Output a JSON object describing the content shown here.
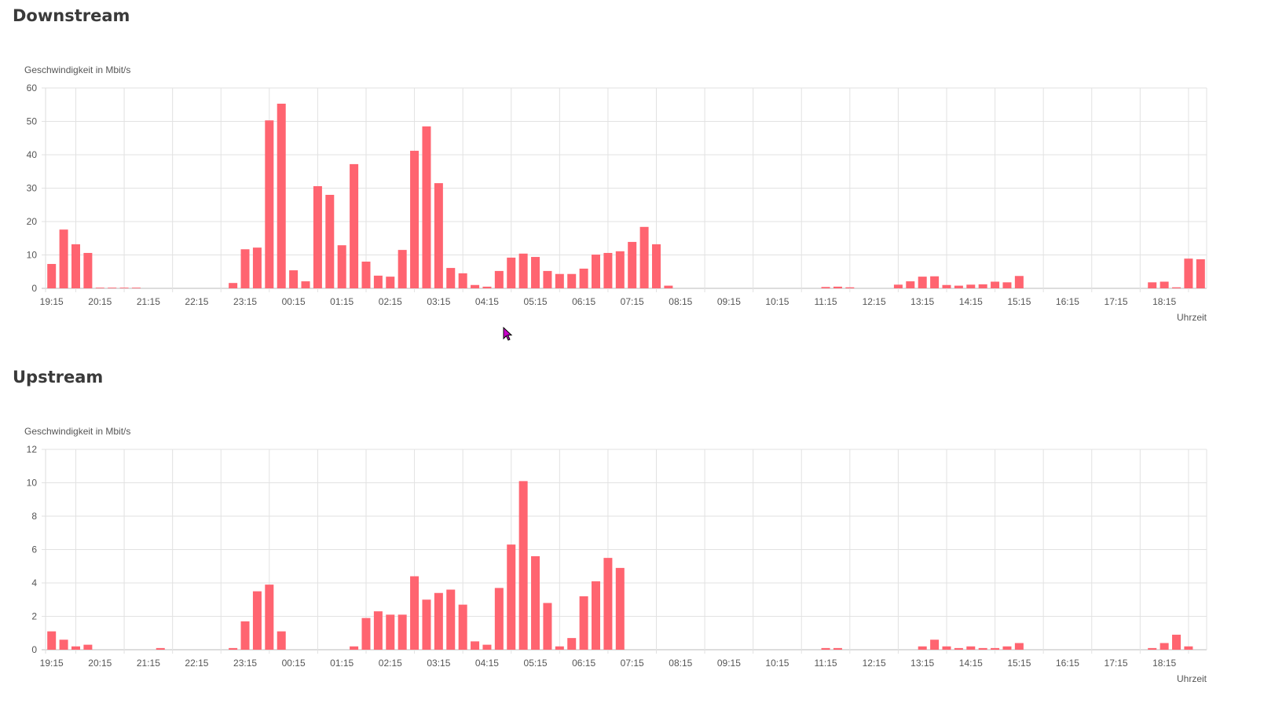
{
  "chart_data": [
    {
      "type": "bar",
      "title": "Downstream",
      "ylabel": "Geschwindigkeit in Mbit/s",
      "xlabel": "Uhrzeit",
      "ylim": [
        0,
        60
      ],
      "yticks": [
        0,
        10,
        20,
        30,
        40,
        50,
        60
      ],
      "xticklabels": [
        "19:15",
        "20:15",
        "21:15",
        "22:15",
        "23:15",
        "00:15",
        "01:15",
        "02:15",
        "03:15",
        "04:15",
        "05:15",
        "06:15",
        "07:15",
        "08:15",
        "09:15",
        "10:15",
        "11:15",
        "12:15",
        "13:15",
        "14:15",
        "15:15",
        "16:15",
        "17:15",
        "18:15"
      ],
      "interval_minutes": 15,
      "color": "#ff6470",
      "values": [
        7.3,
        17.6,
        13.2,
        10.6,
        0.2,
        0.2,
        0.2,
        0.2,
        0,
        0,
        0,
        0,
        0,
        0,
        0,
        1.6,
        11.7,
        12.2,
        50.3,
        55.3,
        5.4,
        2.1,
        30.6,
        28,
        12.9,
        37.2,
        8,
        3.8,
        3.5,
        11.5,
        41.2,
        48.5,
        31.5,
        6.1,
        4.5,
        1,
        0.5,
        5.2,
        9.2,
        10.4,
        9.4,
        5.2,
        4.3,
        4.3,
        5.9,
        10.1,
        10.6,
        11.1,
        13.9,
        18.4,
        13.2,
        0.8,
        0,
        0,
        0,
        0,
        0,
        0,
        0,
        0,
        0,
        0,
        0,
        0,
        0.4,
        0.5,
        0.3,
        0,
        0,
        0,
        1.1,
        2.1,
        3.5,
        3.6,
        1,
        0.8,
        1.1,
        1.2,
        2,
        1.8,
        3.7,
        0,
        0,
        0,
        0,
        0,
        0,
        0,
        0,
        0,
        0,
        1.8,
        2,
        0.3,
        8.9,
        8.7
      ]
    },
    {
      "type": "bar",
      "title": "Upstream",
      "ylabel": "Geschwindigkeit in Mbit/s",
      "xlabel": "Uhrzeit",
      "ylim": [
        0,
        12
      ],
      "yticks": [
        0,
        2,
        4,
        6,
        8,
        10,
        12
      ],
      "xticklabels": [
        "19:15",
        "20:15",
        "21:15",
        "22:15",
        "23:15",
        "00:15",
        "01:15",
        "02:15",
        "03:15",
        "04:15",
        "05:15",
        "06:15",
        "07:15",
        "08:15",
        "09:15",
        "10:15",
        "11:15",
        "12:15",
        "13:15",
        "14:15",
        "15:15",
        "16:15",
        "17:15",
        "18:15"
      ],
      "interval_minutes": 15,
      "color": "#ff6470",
      "values": [
        1.1,
        0.6,
        0.2,
        0.3,
        0,
        0,
        0,
        0,
        0,
        0.1,
        0,
        0,
        0,
        0,
        0,
        0.1,
        1.7,
        3.5,
        3.9,
        1.1,
        0,
        0,
        0,
        0,
        0,
        0.2,
        1.9,
        2.3,
        2.1,
        2.1,
        4.4,
        3,
        3.4,
        3.6,
        2.7,
        0.5,
        0.3,
        3.7,
        6.3,
        10.1,
        5.6,
        2.8,
        0.2,
        0.7,
        3.2,
        4.1,
        5.5,
        4.9,
        0,
        0,
        0,
        0,
        0,
        0,
        0,
        0,
        0,
        0,
        0,
        0,
        0,
        0,
        0,
        0,
        0.1,
        0.1,
        0,
        0,
        0,
        0,
        0,
        0,
        0.2,
        0.6,
        0.2,
        0.1,
        0.2,
        0.1,
        0.1,
        0.2,
        0.4,
        0,
        0,
        0,
        0,
        0,
        0,
        0,
        0,
        0,
        0,
        0.1,
        0.4,
        0.9,
        0.2,
        0
      ]
    }
  ]
}
